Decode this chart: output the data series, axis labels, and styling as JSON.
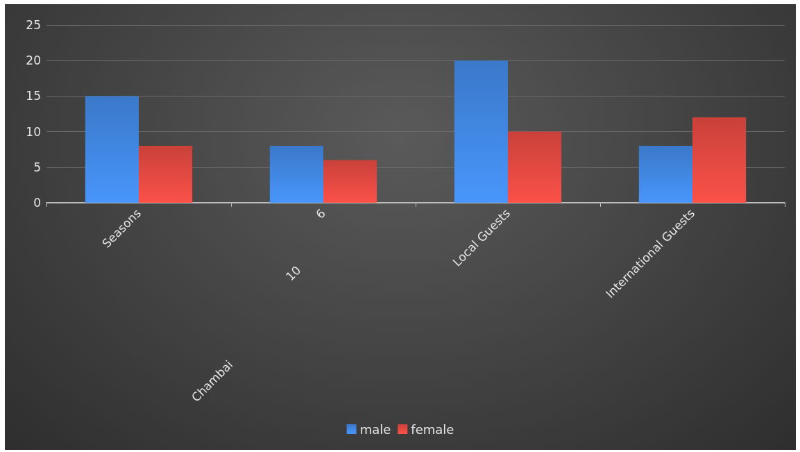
{
  "chart_data": {
    "type": "bar",
    "categories": [
      "Seasons",
      "6",
      "Local Guests",
      "International Guests"
    ],
    "series": [
      {
        "name": "male",
        "color": "#3a78c9",
        "values": [
          15,
          8,
          20,
          8
        ]
      },
      {
        "name": "female",
        "color": "#c9413a",
        "values": [
          8,
          6,
          10,
          12
        ]
      }
    ],
    "ylim": [
      0,
      25
    ],
    "yticks": [
      0,
      5,
      10,
      15,
      20,
      25
    ],
    "grid": "y",
    "legend": "bottom",
    "annotations": [
      "10",
      "Chambai"
    ]
  }
}
